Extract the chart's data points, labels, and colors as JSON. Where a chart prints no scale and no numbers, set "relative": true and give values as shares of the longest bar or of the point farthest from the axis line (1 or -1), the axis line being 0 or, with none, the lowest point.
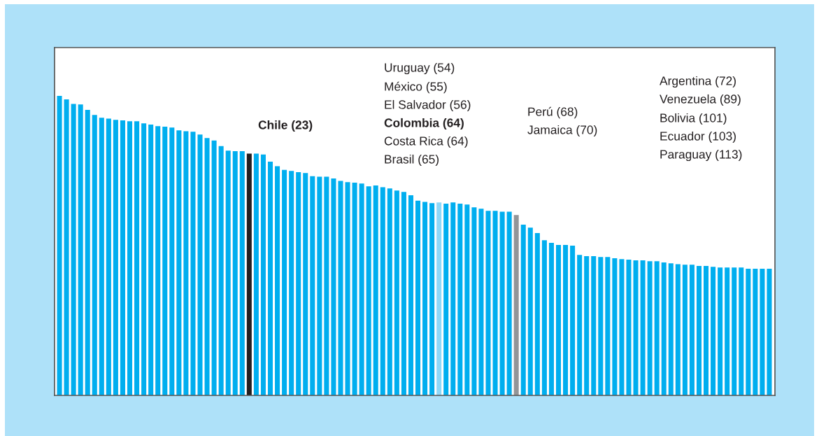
{
  "chart_data": {
    "type": "bar",
    "relative": true,
    "categories": [
      null,
      null,
      null,
      null,
      null,
      null,
      null,
      null,
      null,
      null,
      null,
      null,
      null,
      null,
      null,
      null,
      null,
      null,
      null,
      null,
      null,
      null,
      null,
      null,
      null,
      null,
      null,
      null,
      null,
      null,
      null,
      null,
      null,
      null,
      null,
      null,
      null,
      null,
      null,
      null,
      null,
      null,
      null,
      null,
      null,
      null,
      null,
      null,
      null,
      null,
      null,
      null,
      null,
      null,
      null,
      null,
      null,
      null,
      null,
      null,
      null,
      null,
      null,
      null,
      null,
      null,
      null,
      null,
      null,
      null,
      null,
      null,
      null,
      null,
      null,
      null,
      null,
      null,
      null,
      null,
      null,
      null,
      null,
      null,
      null,
      null,
      null,
      null,
      null,
      null,
      null,
      null,
      null,
      null,
      null,
      null,
      null,
      null,
      null,
      null,
      null,
      null
    ],
    "values": [
      1,
      0.988,
      0.973,
      0.971,
      0.953,
      0.936,
      0.927,
      0.924,
      0.92,
      0.918,
      0.915,
      0.915,
      0.908,
      0.904,
      0.899,
      0.897,
      0.894,
      0.885,
      0.882,
      0.88,
      0.871,
      0.859,
      0.851,
      0.832,
      0.817,
      0.815,
      0.815,
      0.807,
      0.807,
      0.804,
      0.78,
      0.765,
      0.753,
      0.749,
      0.745,
      0.742,
      0.732,
      0.73,
      0.73,
      0.724,
      0.716,
      0.712,
      0.71,
      0.707,
      0.698,
      0.701,
      0.695,
      0.691,
      0.684,
      0.679,
      0.668,
      0.65,
      0.646,
      0.642,
      0.644,
      0.64,
      0.644,
      0.64,
      0.637,
      0.628,
      0.623,
      0.616,
      0.616,
      0.613,
      0.613,
      0.602,
      0.57,
      0.56,
      0.542,
      0.518,
      0.509,
      0.502,
      0.502,
      0.5,
      0.469,
      0.465,
      0.465,
      0.462,
      0.462,
      0.458,
      0.455,
      0.453,
      0.451,
      0.451,
      0.448,
      0.448,
      0.444,
      0.441,
      0.438,
      0.436,
      0.436,
      0.432,
      0.432,
      0.429,
      0.427,
      0.427,
      0.427,
      0.427,
      0.423,
      0.423,
      0.423,
      0.423
    ],
    "colors": [
      "#00aeef",
      "#00aeef",
      "#00aeef",
      "#00aeef",
      "#00aeef",
      "#00aeef",
      "#00aeef",
      "#00aeef",
      "#00aeef",
      "#00aeef",
      "#00aeef",
      "#00aeef",
      "#00aeef",
      "#00aeef",
      "#00aeef",
      "#00aeef",
      "#00aeef",
      "#00aeef",
      "#00aeef",
      "#00aeef",
      "#00aeef",
      "#00aeef",
      "#00aeef",
      "#00aeef",
      "#00aeef",
      "#00aeef",
      "#00aeef",
      "#231f20",
      "#00aeef",
      "#00aeef",
      "#00aeef",
      "#00aeef",
      "#00aeef",
      "#00aeef",
      "#00aeef",
      "#00aeef",
      "#00aeef",
      "#00aeef",
      "#00aeef",
      "#00aeef",
      "#00aeef",
      "#00aeef",
      "#00aeef",
      "#00aeef",
      "#00aeef",
      "#00aeef",
      "#00aeef",
      "#00aeef",
      "#00aeef",
      "#00aeef",
      "#00aeef",
      "#00aeef",
      "#00aeef",
      "#00aeef",
      "#8fd8f8",
      "#00aeef",
      "#00aeef",
      "#00aeef",
      "#00aeef",
      "#00aeef",
      "#00aeef",
      "#00aeef",
      "#00aeef",
      "#00aeef",
      "#00aeef",
      "#939598",
      "#00aeef",
      "#00aeef",
      "#00aeef",
      "#00aeef",
      "#00aeef",
      "#00aeef",
      "#00aeef",
      "#00aeef",
      "#00aeef",
      "#00aeef",
      "#00aeef",
      "#00aeef",
      "#00aeef",
      "#00aeef",
      "#00aeef",
      "#00aeef",
      "#00aeef",
      "#00aeef",
      "#00aeef",
      "#00aeef",
      "#00aeef",
      "#00aeef",
      "#00aeef",
      "#00aeef",
      "#00aeef",
      "#00aeef",
      "#00aeef",
      "#00aeef",
      "#00aeef",
      "#00aeef",
      "#00aeef",
      "#00aeef",
      "#00aeef",
      "#00aeef",
      "#00aeef",
      "#00aeef"
    ],
    "annotations": [
      "Chile (23)",
      "Uruguay (54)",
      "México (55)",
      "El Salvador (56)",
      "Colombia (64)",
      "Costa Rica (64)",
      "Brasil (65)",
      "Perú (68)",
      "Jamaica (70)",
      "Argentina (72)",
      "Venezuela (89)",
      "Bolivia (101)",
      "Ecuador (103)",
      "Paraguay (113)"
    ]
  }
}
